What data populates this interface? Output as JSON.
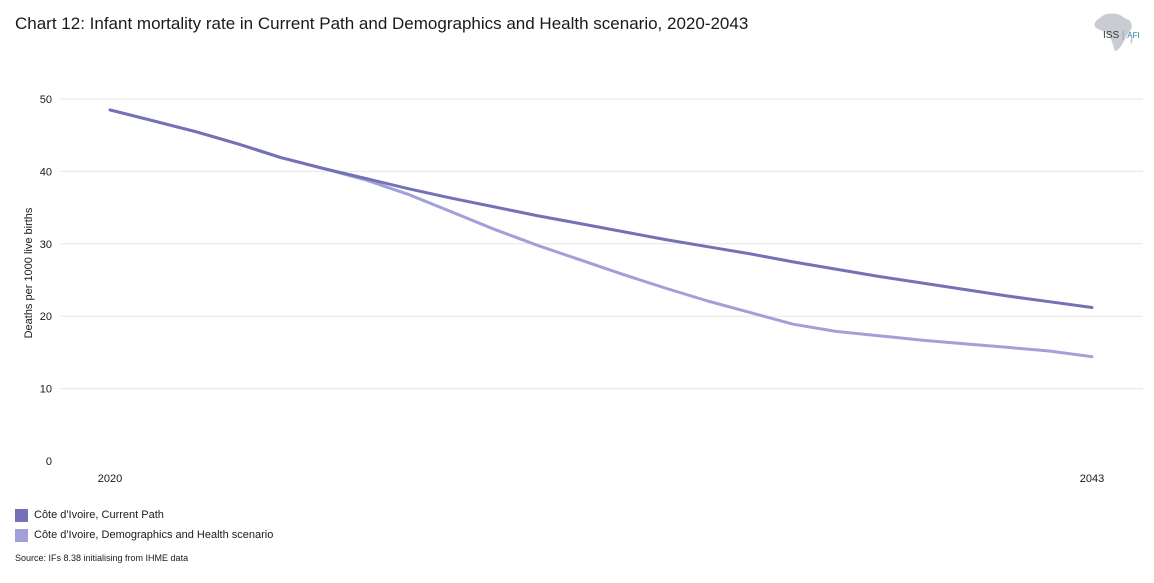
{
  "title": "Chart 12: Infant mortality rate in Current Path and Demographics and Health scenario, 2020-2043",
  "logo": {
    "text_iss": "ISS",
    "text_afi": "AFI"
  },
  "source": "Source: IFs 8.38 initialising from IHME data",
  "colors": {
    "current_path": "#7472b5",
    "demographics_health": "#a1a0d9",
    "grid": "#e6e6e6"
  },
  "chart_data": {
    "type": "line",
    "title": "Chart 12: Infant mortality rate in Current Path and Demographics and Health scenario, 2020-2043",
    "xlabel": "",
    "ylabel": "Deaths per 1000 live births",
    "x": [
      2020,
      2021,
      2022,
      2023,
      2024,
      2025,
      2026,
      2027,
      2028,
      2029,
      2030,
      2031,
      2032,
      2033,
      2034,
      2035,
      2036,
      2037,
      2038,
      2039,
      2040,
      2041,
      2042,
      2043
    ],
    "xticks": [
      "2020",
      "2043"
    ],
    "ylim": [
      0,
      50
    ],
    "yticks": [
      0,
      10,
      20,
      30,
      40,
      50
    ],
    "grid": true,
    "legend_position": "bottom-left",
    "series": [
      {
        "name": "Côte d'Ivoire, Current Path",
        "values": [
          48.5,
          47.0,
          45.5,
          43.8,
          41.9,
          40.4,
          39.0,
          37.6,
          36.3,
          35.1,
          33.9,
          32.8,
          31.7,
          30.6,
          29.6,
          28.6,
          27.5,
          26.5,
          25.5,
          24.6,
          23.7,
          22.8,
          22.0,
          21.2
        ]
      },
      {
        "name": "Côte d'Ivoire, Demographics and Health scenario",
        "values": [
          48.5,
          47.0,
          45.5,
          43.8,
          41.9,
          40.4,
          38.8,
          36.8,
          34.4,
          32.0,
          29.8,
          27.8,
          25.8,
          23.9,
          22.1,
          20.5,
          18.9,
          17.9,
          17.3,
          16.7,
          16.2,
          15.7,
          15.2,
          14.4
        ]
      }
    ]
  }
}
